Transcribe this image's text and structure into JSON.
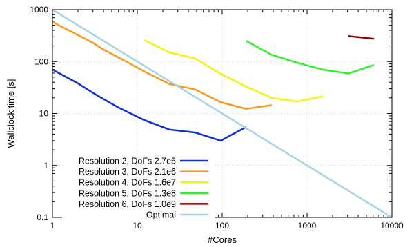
{
  "chart_data": {
    "type": "line",
    "xlabel": "#Cores",
    "ylabel": "Wallclock time [s]",
    "xscale": "log",
    "yscale": "log",
    "xlim": [
      1,
      10000
    ],
    "ylim": [
      0.1,
      1000
    ],
    "x_ticks": [
      1,
      10,
      100,
      1000,
      10000
    ],
    "y_ticks": [
      0.1,
      1,
      10,
      100,
      1000
    ],
    "x_tick_labels": [
      "1",
      "10",
      "100",
      "1000",
      "10000"
    ],
    "y_tick_labels": [
      "0.1",
      "1",
      "10",
      "100",
      "1000"
    ],
    "grid": true,
    "legend_position": "bottom-left",
    "series": [
      {
        "name": "Resolution 2, DoFs 2.7e5",
        "color": "#0a2fd8",
        "x": [
          1,
          2,
          3,
          4,
          6,
          12,
          24,
          48,
          96,
          192
        ],
        "y": [
          70,
          38,
          25,
          19,
          13,
          7.5,
          4.9,
          4.3,
          3.0,
          5.5
        ]
      },
      {
        "name": "Resolution 3, DoFs 2.1e6",
        "color": "#f59a1d",
        "x": [
          1,
          3,
          4,
          6,
          12,
          24,
          48,
          96,
          192,
          384
        ],
        "y": [
          580,
          230,
          170,
          120,
          65,
          37,
          29,
          16.5,
          12.3,
          14.5
        ]
      },
      {
        "name": "Resolution 4, DoFs 1.6e7",
        "color": "#f4f40a",
        "x": [
          12,
          24,
          48,
          96,
          192,
          384,
          768,
          1536
        ],
        "y": [
          260,
          150,
          115,
          58,
          33,
          20,
          17,
          21.5
        ]
      },
      {
        "name": "Resolution 5, DoFs 1.3e8",
        "color": "#2ef02e",
        "x": [
          192,
          384,
          768,
          1536,
          3072,
          6144
        ],
        "y": [
          250,
          135,
          95,
          70,
          59,
          86
        ]
      },
      {
        "name": "Resolution 6, DoFs 1.0e9",
        "color": "#8b0000",
        "x": [
          3072,
          6144
        ],
        "y": [
          310,
          275
        ]
      },
      {
        "name": "Optimal",
        "color": "#a5d3e4",
        "x": [
          1,
          10000
        ],
        "y": [
          1000,
          0.1
        ]
      }
    ]
  }
}
